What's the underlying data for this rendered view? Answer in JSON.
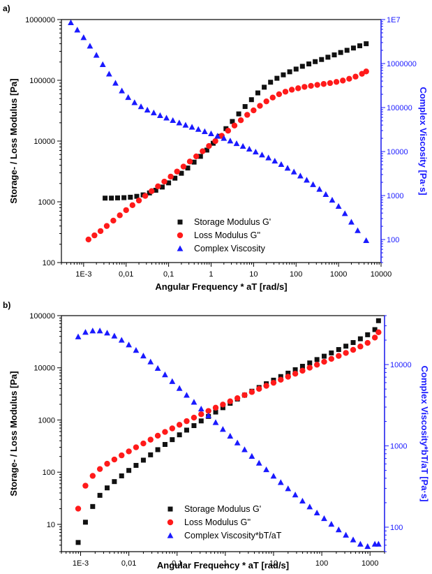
{
  "chart_data": [
    {
      "panel": "a)",
      "type": "scatter",
      "xlabel": "Angular Frequency * aT [rad/s]",
      "ylabel": "Storage- / Loss Modulus [Pa]",
      "ylabel_right": "Complex Viscosity [Pa·s]",
      "x_scale": "log",
      "y_scale": "log",
      "y2_scale": "log",
      "xlim": [
        0.0003,
        10000
      ],
      "ylim": [
        100,
        1000000
      ],
      "y2lim": [
        30,
        10000000
      ],
      "x_ticks": [
        "1E-3",
        "0,01",
        "0,1",
        "1",
        "10",
        "100",
        "1000",
        "10000"
      ],
      "y_ticks": [
        "100",
        "1000",
        "10000",
        "100000",
        "1000000"
      ],
      "y2_ticks": [
        "100",
        "1000",
        "10000",
        "100000",
        "1000000",
        "1E7"
      ],
      "legend_position": "bottom-center",
      "colors": {
        "storage": "#111111",
        "loss": "#ff1a1a",
        "viscosity": "#1a1aff"
      },
      "series": [
        {
          "name": "Storage Modulus G'",
          "marker": "square",
          "axis": "left",
          "x": [
            0.0032,
            0.0045,
            0.0063,
            0.0089,
            0.0126,
            0.0178,
            0.0251,
            0.0355,
            0.05,
            0.0708,
            0.1,
            0.141,
            0.2,
            0.282,
            0.398,
            0.562,
            0.794,
            1.12,
            1.58,
            2.24,
            3.16,
            4.47,
            6.31,
            8.91,
            12.6,
            17.8,
            25.1,
            35.5,
            50.1,
            70.8,
            100,
            141,
            200,
            282,
            398,
            562,
            794,
            1120,
            1580,
            2240,
            3160,
            4470
          ],
          "y": [
            1150,
            1150,
            1160,
            1170,
            1190,
            1230,
            1300,
            1400,
            1550,
            1750,
            2050,
            2450,
            2950,
            3600,
            4500,
            5600,
            7100,
            9200,
            12000,
            16000,
            21000,
            28000,
            37000,
            48000,
            62000,
            77000,
            93000,
            108000,
            123000,
            138000,
            153000,
            170000,
            186000,
            203000,
            220000,
            240000,
            262000,
            287000,
            312000,
            340000,
            370000,
            400000
          ]
        },
        {
          "name": "Loss Modulus G''",
          "marker": "circle",
          "axis": "left",
          "x": [
            0.0013,
            0.0018,
            0.0025,
            0.0035,
            0.005,
            0.0071,
            0.01,
            0.0141,
            0.02,
            0.0282,
            0.0398,
            0.0562,
            0.0794,
            0.112,
            0.158,
            0.224,
            0.316,
            0.447,
            0.631,
            0.891,
            1.26,
            1.78,
            2.51,
            3.55,
            5.01,
            7.08,
            10,
            14.1,
            20,
            28.2,
            39.8,
            56.2,
            79.4,
            112,
            158,
            224,
            316,
            447,
            631,
            891,
            1260,
            1780,
            2510,
            3550,
            4470
          ],
          "y": [
            240,
            280,
            330,
            400,
            490,
            600,
            730,
            880,
            1050,
            1250,
            1500,
            1800,
            2150,
            2600,
            3150,
            3800,
            4600,
            5600,
            6800,
            8300,
            10000,
            12200,
            14800,
            18000,
            22000,
            27000,
            32000,
            38000,
            45000,
            52000,
            59000,
            65000,
            70000,
            74000,
            78000,
            81000,
            84000,
            87000,
            90000,
            94000,
            99000,
            106000,
            115000,
            128000,
            140000
          ]
        },
        {
          "name": "Complex Viscosity",
          "marker": "triangle",
          "axis": "right",
          "x": [
            0.0005,
            0.00071,
            0.001,
            0.00141,
            0.002,
            0.00282,
            0.00398,
            0.00562,
            0.00794,
            0.0112,
            0.0158,
            0.0224,
            0.0316,
            0.0447,
            0.0631,
            0.0891,
            0.126,
            0.178,
            0.251,
            0.355,
            0.501,
            0.708,
            1,
            1.41,
            2,
            2.82,
            3.98,
            5.62,
            7.94,
            11.2,
            15.8,
            22.4,
            31.6,
            44.7,
            63.1,
            89.1,
            126,
            178,
            251,
            355,
            501,
            708,
            1000,
            1410,
            2000,
            2820,
            4470
          ],
          "y": [
            8500000,
            5800000,
            3900000,
            2500000,
            1550000,
            950000,
            580000,
            360000,
            240000,
            170000,
            130000,
            105000,
            88000,
            76000,
            66000,
            58000,
            51000,
            45000,
            40000,
            36000,
            32000,
            28500,
            25500,
            22500,
            20000,
            17500,
            15200,
            13200,
            11400,
            9800,
            8400,
            7200,
            6100,
            5100,
            4200,
            3450,
            2800,
            2250,
            1780,
            1390,
            1060,
            790,
            570,
            390,
            250,
            160,
            95
          ]
        }
      ]
    },
    {
      "panel": "b)",
      "type": "scatter",
      "xlabel": "Angular Frequency * aT [rad/s]",
      "ylabel": "Storage- / Loss Modulus [Pa]",
      "ylabel_right": "Complex Viscosity*bT/aT [Pa·s]",
      "x_scale": "log",
      "y_scale": "log",
      "y2_scale": "log",
      "xlim": [
        0.0004,
        2000
      ],
      "ylim": [
        3,
        100000
      ],
      "y2lim": [
        50,
        40000
      ],
      "x_ticks": [
        "1E-3",
        "0,01",
        "0,1",
        "1",
        "10",
        "100",
        "1000"
      ],
      "y_ticks": [
        "10",
        "100",
        "1000",
        "10000",
        "100000"
      ],
      "y2_ticks": [
        "100",
        "1000",
        "10000"
      ],
      "legend_position": "bottom-left",
      "colors": {
        "storage": "#111111",
        "loss": "#ff1a1a",
        "viscosity": "#1a1aff"
      },
      "series": [
        {
          "name": "Storage Modulus G'",
          "marker": "square",
          "axis": "left",
          "x": [
            0.00089,
            0.00126,
            0.00178,
            0.00251,
            0.00355,
            0.00501,
            0.00708,
            0.01,
            0.0141,
            0.02,
            0.0282,
            0.0398,
            0.0562,
            0.0794,
            0.112,
            0.158,
            0.224,
            0.316,
            0.447,
            0.631,
            0.891,
            1.26,
            1.78,
            2.51,
            3.55,
            5.01,
            7.08,
            10,
            14.1,
            20,
            28.2,
            39.8,
            56.2,
            79.4,
            112,
            158,
            224,
            316,
            447,
            631,
            891,
            1260,
            1500
          ],
          "y": [
            4.5,
            11,
            22,
            36,
            50,
            66,
            85,
            108,
            135,
            170,
            215,
            270,
            340,
            420,
            520,
            640,
            780,
            960,
            1170,
            1420,
            1720,
            2090,
            2520,
            3000,
            3560,
            4200,
            4950,
            5800,
            6800,
            7900,
            9200,
            10700,
            12400,
            14400,
            16700,
            19300,
            22400,
            26000,
            30500,
            36000,
            43000,
            54000,
            80000
          ]
        },
        {
          "name": "Loss Modulus G''",
          "marker": "circle",
          "axis": "left",
          "x": [
            0.00089,
            0.00126,
            0.00178,
            0.00251,
            0.00355,
            0.00501,
            0.00708,
            0.01,
            0.0141,
            0.02,
            0.0282,
            0.0398,
            0.0562,
            0.0794,
            0.112,
            0.158,
            0.224,
            0.316,
            0.447,
            0.631,
            0.891,
            1.26,
            1.78,
            2.51,
            3.55,
            5.01,
            7.08,
            10,
            14.1,
            20,
            28.2,
            39.8,
            56.2,
            79.4,
            112,
            158,
            224,
            316,
            447,
            631,
            891,
            1260,
            1500
          ],
          "y": [
            20,
            55,
            85,
            115,
            145,
            175,
            210,
            250,
            300,
            355,
            420,
            500,
            590,
            690,
            810,
            950,
            1110,
            1290,
            1490,
            1720,
            1980,
            2280,
            2620,
            3000,
            3440,
            3950,
            4520,
            5170,
            5910,
            6750,
            7700,
            8800,
            10050,
            11450,
            13050,
            14850,
            16900,
            19300,
            22100,
            25600,
            30000,
            38000,
            48000
          ]
        },
        {
          "name": "Complex Viscosity*bT/aT",
          "marker": "triangle",
          "axis": "right",
          "x": [
            0.00089,
            0.00126,
            0.00178,
            0.00251,
            0.00355,
            0.00501,
            0.00708,
            0.01,
            0.0141,
            0.02,
            0.0282,
            0.0398,
            0.0562,
            0.0794,
            0.112,
            0.158,
            0.224,
            0.316,
            0.447,
            0.631,
            0.891,
            1.26,
            1.78,
            2.51,
            3.55,
            5.01,
            7.08,
            10,
            14.1,
            20,
            28.2,
            39.8,
            56.2,
            79.4,
            112,
            158,
            224,
            316,
            447,
            631,
            891,
            1260,
            1500
          ],
          "y": [
            22000,
            25000,
            26000,
            26000,
            24500,
            22500,
            20000,
            17500,
            15000,
            12800,
            10800,
            9000,
            7500,
            6200,
            5100,
            4200,
            3450,
            2850,
            2350,
            1940,
            1600,
            1320,
            1090,
            900,
            745,
            615,
            510,
            425,
            355,
            298,
            250,
            210,
            178,
            150,
            128,
            109,
            93,
            80,
            70,
            62,
            58,
            62,
            62
          ]
        }
      ]
    }
  ]
}
